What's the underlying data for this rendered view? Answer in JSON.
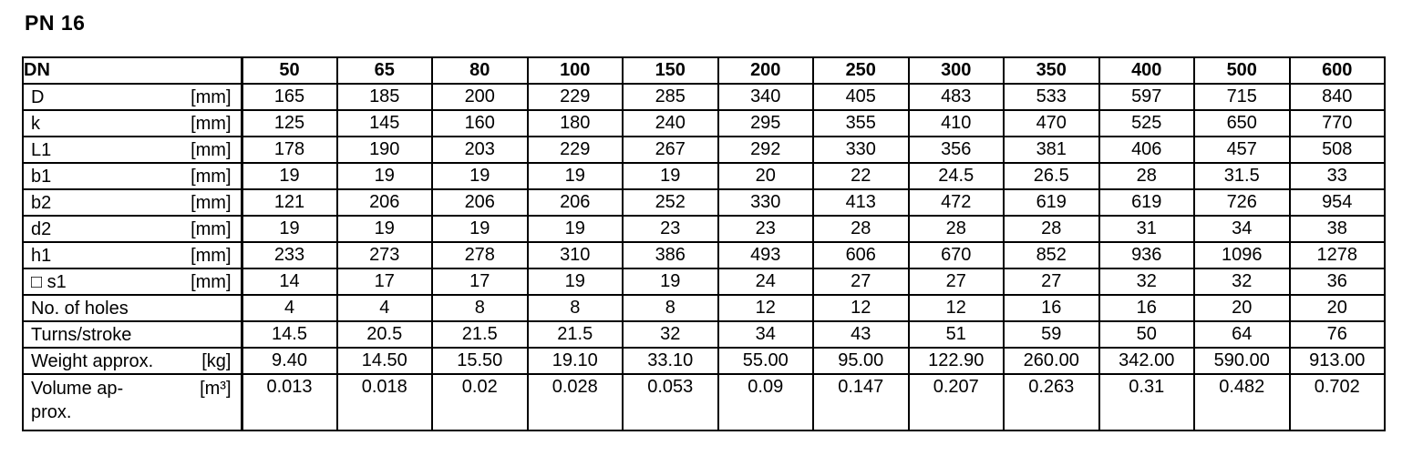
{
  "title": "PN 16",
  "table": {
    "corner_label": "DN",
    "columns": [
      "50",
      "65",
      "80",
      "100",
      "150",
      "200",
      "250",
      "300",
      "350",
      "400",
      "500",
      "600"
    ],
    "rows": [
      {
        "label": "D",
        "unit": "[mm]",
        "values": [
          "165",
          "185",
          "200",
          "229",
          "285",
          "340",
          "405",
          "483",
          "533",
          "597",
          "715",
          "840"
        ]
      },
      {
        "label": "k",
        "unit": "[mm]",
        "values": [
          "125",
          "145",
          "160",
          "180",
          "240",
          "295",
          "355",
          "410",
          "470",
          "525",
          "650",
          "770"
        ]
      },
      {
        "label": "L1",
        "unit": "[mm]",
        "values": [
          "178",
          "190",
          "203",
          "229",
          "267",
          "292",
          "330",
          "356",
          "381",
          "406",
          "457",
          "508"
        ]
      },
      {
        "label": "b1",
        "unit": "[mm]",
        "values": [
          "19",
          "19",
          "19",
          "19",
          "19",
          "20",
          "22",
          "24.5",
          "26.5",
          "28",
          "31.5",
          "33"
        ]
      },
      {
        "label": "b2",
        "unit": "[mm]",
        "values": [
          "121",
          "206",
          "206",
          "206",
          "252",
          "330",
          "413",
          "472",
          "619",
          "619",
          "726",
          "954"
        ]
      },
      {
        "label": "d2",
        "unit": "[mm]",
        "values": [
          "19",
          "19",
          "19",
          "19",
          "23",
          "23",
          "28",
          "28",
          "28",
          "31",
          "34",
          "38"
        ]
      },
      {
        "label": "h1",
        "unit": "[mm]",
        "values": [
          "233",
          "273",
          "278",
          "310",
          "386",
          "493",
          "606",
          "670",
          "852",
          "936",
          "1096",
          "1278"
        ]
      },
      {
        "label": "□ s1",
        "unit": "[mm]",
        "values": [
          "14",
          "17",
          "17",
          "19",
          "19",
          "24",
          "27",
          "27",
          "27",
          "32",
          "32",
          "36"
        ]
      },
      {
        "label": "No. of holes",
        "unit": "",
        "values": [
          "4",
          "4",
          "8",
          "8",
          "8",
          "12",
          "12",
          "12",
          "16",
          "16",
          "20",
          "20"
        ]
      },
      {
        "label": "Turns/stroke",
        "unit": "",
        "values": [
          "14.5",
          "20.5",
          "21.5",
          "21.5",
          "32",
          "34",
          "43",
          "51",
          "59",
          "50",
          "64",
          "76"
        ]
      },
      {
        "label": "Weight approx.",
        "unit": "[kg]",
        "values": [
          "9.40",
          "14.50",
          "15.50",
          "19.10",
          "33.10",
          "55.00",
          "95.00",
          "122.90",
          "260.00",
          "342.00",
          "590.00",
          "913.00"
        ]
      },
      {
        "label": "Volume ap-\nprox.",
        "unit": "[m³]",
        "tall": true,
        "values": [
          "0.013",
          "0.018",
          "0.02",
          "0.028",
          "0.053",
          "0.09",
          "0.147",
          "0.207",
          "0.263",
          "0.31",
          "0.482",
          "0.702"
        ]
      }
    ]
  }
}
